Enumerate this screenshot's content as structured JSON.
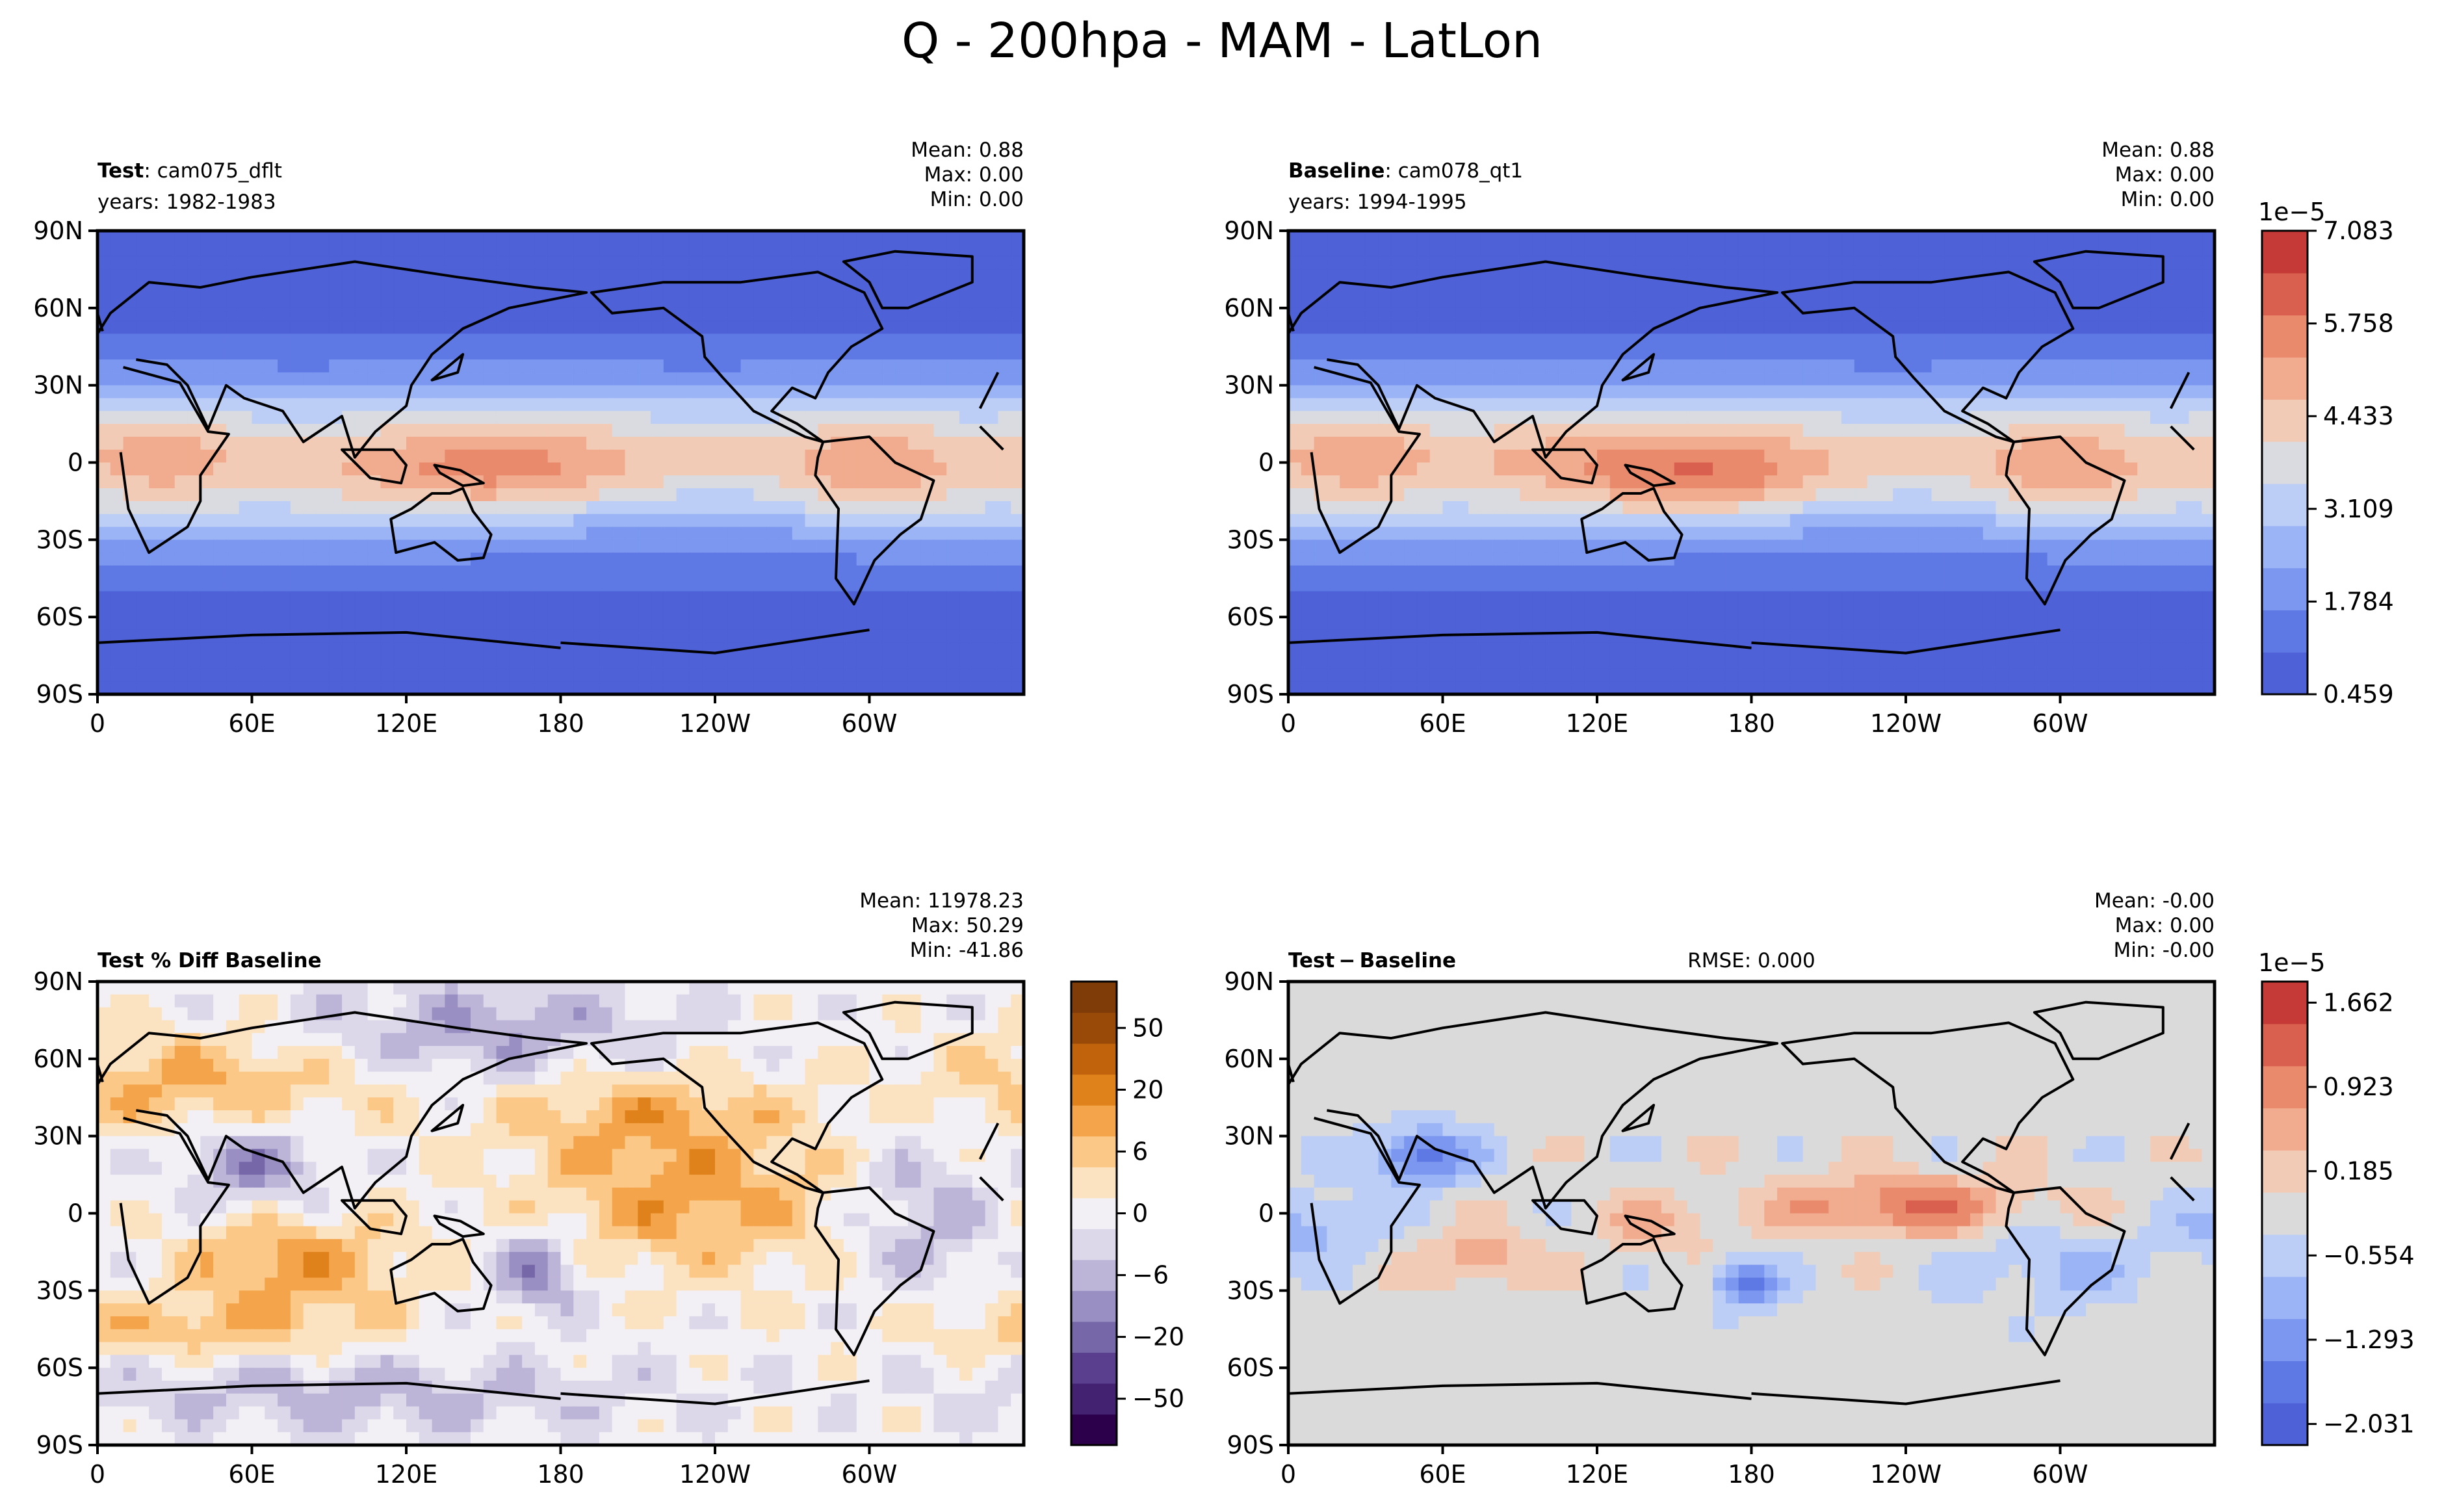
{
  "figure": {
    "title": "Q - 200hpa - MAM - LatLon"
  },
  "chart_data": [
    {
      "type": "heatmap",
      "panel": "test",
      "title_bold": "Test",
      "title_rest": ": cam075_dflt",
      "subtitle": "years: 1982-1983",
      "stats": [
        "Mean:  0.88",
        "Max:  0.00",
        "Min:  0.00"
      ],
      "xticks": [
        "0",
        "60E",
        "120E",
        "180",
        "120W",
        "60W"
      ],
      "yticks": [
        "90N",
        "60N",
        "30N",
        "0",
        "30S",
        "60S",
        "90S"
      ],
      "xlim": [
        0,
        360
      ],
      "ylim": [
        -90,
        90
      ],
      "field": "abs",
      "scale": "1e-5",
      "range": [
        0.459,
        7.083
      ]
    },
    {
      "type": "heatmap",
      "panel": "baseline",
      "title_bold": "Baseline",
      "title_rest": ": cam078_qt1",
      "subtitle": "years: 1994-1995",
      "stats": [
        "Mean:  0.88",
        "Max:  0.00",
        "Min:  0.00"
      ],
      "xticks": [
        "0",
        "60E",
        "120E",
        "180",
        "120W",
        "60W"
      ],
      "yticks": [
        "90N",
        "60N",
        "30N",
        "0",
        "30S",
        "60S",
        "90S"
      ],
      "xlim": [
        0,
        360
      ],
      "ylim": [
        -90,
        90
      ],
      "field": "abs",
      "scale": "1e-5",
      "range": [
        0.459,
        7.083
      ],
      "colorbar": {
        "exponent": "1e−5",
        "ticks": [
          "0.459",
          "1.784",
          "3.109",
          "4.433",
          "5.758",
          "7.083"
        ],
        "values": [
          0.459,
          1.784,
          3.109,
          4.433,
          5.758,
          7.083
        ],
        "levels": 11,
        "colors": [
          "#4e61d6",
          "#5f79e4",
          "#7b97ef",
          "#9bb4f6",
          "#bccef6",
          "#d9dbe0",
          "#f2cbb6",
          "#f1ac8f",
          "#e98a6c",
          "#d9604e",
          "#c53a36"
        ]
      }
    },
    {
      "type": "heatmap",
      "panel": "pctdiff",
      "title_bold": "Test % Diff Baseline",
      "title_rest": "",
      "subtitle": "",
      "stats": [
        "Mean: 11978.23",
        "Max: 50.29",
        "Min: -41.86"
      ],
      "xticks": [
        "0",
        "60E",
        "120E",
        "180",
        "120W",
        "60W"
      ],
      "yticks": [
        "90N",
        "60N",
        "30N",
        "0",
        "30S",
        "60S",
        "90S"
      ],
      "xlim": [
        0,
        360
      ],
      "ylim": [
        -90,
        90
      ],
      "field": "pct",
      "colorbar": {
        "ticks": [
          "50",
          "20",
          "6",
          "0",
          "−6",
          "−20",
          "−50"
        ],
        "values": [
          50,
          20,
          6,
          0,
          -6,
          -20,
          -50
        ],
        "range": [
          -70,
          70
        ],
        "colors": [
          "#2d004b",
          "#432371",
          "#5a3f8f",
          "#7667a9",
          "#9a8fc2",
          "#bdb5d8",
          "#dcd8ea",
          "#f2f0f5",
          "#fbe3c2",
          "#fcc887",
          "#f4a44a",
          "#e0821b",
          "#c1620c",
          "#9a4a08",
          "#7f3b08"
        ]
      }
    },
    {
      "type": "heatmap",
      "panel": "diff",
      "title_bold": "Test − Baseline",
      "title_rest": "",
      "subtitle": "",
      "rmse": "RMSE: 0.000",
      "stats": [
        "Mean: -0.00",
        "Max:  0.00",
        "Min: -0.00"
      ],
      "xticks": [
        "0",
        "60E",
        "120E",
        "180",
        "120W",
        "60W"
      ],
      "yticks": [
        "90N",
        "60N",
        "30N",
        "0",
        "30S",
        "60S",
        "90S"
      ],
      "xlim": [
        0,
        360
      ],
      "ylim": [
        -90,
        90
      ],
      "field": "diff",
      "colorbar": {
        "exponent": "1e−5",
        "ticks": [
          "−2.031",
          "−1.293",
          "−0.554",
          "0.185",
          "0.923",
          "1.662"
        ],
        "values": [
          -2.031,
          -1.293,
          -0.554,
          0.185,
          0.923,
          1.662
        ],
        "range": [
          -2.031,
          2.031
        ],
        "colors": [
          "#4e61d6",
          "#5f79e4",
          "#7b97ef",
          "#9bb4f6",
          "#bccef6",
          "#dadada",
          "#f2cbb6",
          "#f1ac8f",
          "#e98a6c",
          "#d9604e",
          "#c53a36"
        ]
      }
    }
  ]
}
